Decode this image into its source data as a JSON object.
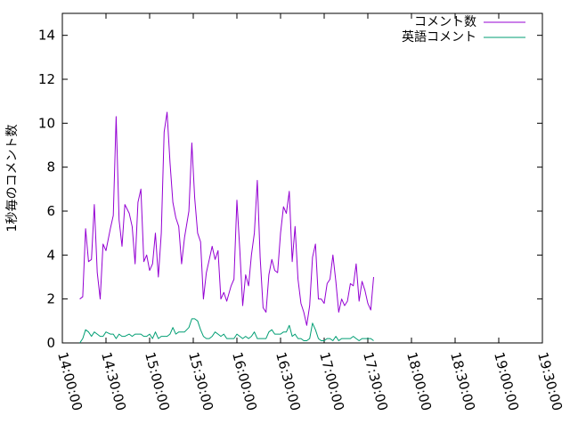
{
  "chart_data": {
    "type": "line",
    "title": "",
    "xlabel": "",
    "ylabel": "1秒毎のコメント数",
    "xlim": [
      "14:00:00",
      "19:30:00"
    ],
    "ylim": [
      0,
      15
    ],
    "grid": false,
    "legend_position": "top-right",
    "x_ticks": [
      "14:00:00",
      "14:30:00",
      "15:00:00",
      "15:30:00",
      "16:00:00",
      "16:30:00",
      "17:00:00",
      "17:30:00",
      "18:00:00",
      "18:30:00",
      "19:00:00",
      "19:30:00"
    ],
    "y_ticks": [
      0,
      2,
      4,
      6,
      8,
      10,
      12,
      14
    ],
    "series": [
      {
        "name": "コメント数",
        "color": "#9400d3",
        "points": [
          [
            "14:12:00",
            2.0
          ],
          [
            "14:14:00",
            2.1
          ],
          [
            "14:16:00",
            5.2
          ],
          [
            "14:18:00",
            3.7
          ],
          [
            "14:20:00",
            3.8
          ],
          [
            "14:22:00",
            6.3
          ],
          [
            "14:24:00",
            3.2
          ],
          [
            "14:26:00",
            2.0
          ],
          [
            "14:28:00",
            4.5
          ],
          [
            "14:30:00",
            4.2
          ],
          [
            "14:33:00",
            5.2
          ],
          [
            "14:35:00",
            5.8
          ],
          [
            "14:37:00",
            10.3
          ],
          [
            "14:39:00",
            5.6
          ],
          [
            "14:41:00",
            4.4
          ],
          [
            "14:43:00",
            6.3
          ],
          [
            "14:46:00",
            5.9
          ],
          [
            "14:48:00",
            5.3
          ],
          [
            "14:50:00",
            3.6
          ],
          [
            "14:52:00",
            6.4
          ],
          [
            "14:54:00",
            7.0
          ],
          [
            "14:56:00",
            3.7
          ],
          [
            "14:58:00",
            4.0
          ],
          [
            "15:00:00",
            3.3
          ],
          [
            "15:02:00",
            3.6
          ],
          [
            "15:04:00",
            5.0
          ],
          [
            "15:06:00",
            3.0
          ],
          [
            "15:08:00",
            5.0
          ],
          [
            "15:10:00",
            9.6
          ],
          [
            "15:12:00",
            10.5
          ],
          [
            "15:14:00",
            8.2
          ],
          [
            "15:16:00",
            6.4
          ],
          [
            "15:18:00",
            5.7
          ],
          [
            "15:20:00",
            5.3
          ],
          [
            "15:22:00",
            3.6
          ],
          [
            "15:24:00",
            4.8
          ],
          [
            "15:27:00",
            6.0
          ],
          [
            "15:29:00",
            9.1
          ],
          [
            "15:31:00",
            6.6
          ],
          [
            "15:33:00",
            5.0
          ],
          [
            "15:35:00",
            4.6
          ],
          [
            "15:37:00",
            2.0
          ],
          [
            "15:39:00",
            3.2
          ],
          [
            "15:41:00",
            3.8
          ],
          [
            "15:43:00",
            4.4
          ],
          [
            "15:45:00",
            3.8
          ],
          [
            "15:47:00",
            4.2
          ],
          [
            "15:49:00",
            2.0
          ],
          [
            "15:51:00",
            2.3
          ],
          [
            "15:53:00",
            1.9
          ],
          [
            "15:56:00",
            2.6
          ],
          [
            "15:58:00",
            2.9
          ],
          [
            "16:00:00",
            6.5
          ],
          [
            "16:02:00",
            4.2
          ],
          [
            "16:04:00",
            1.7
          ],
          [
            "16:06:00",
            3.1
          ],
          [
            "16:08:00",
            2.6
          ],
          [
            "16:10:00",
            4.0
          ],
          [
            "16:12:00",
            5.0
          ],
          [
            "16:14:00",
            7.4
          ],
          [
            "16:16:00",
            3.9
          ],
          [
            "16:18:00",
            1.6
          ],
          [
            "16:20:00",
            1.4
          ],
          [
            "16:22:00",
            3.1
          ],
          [
            "16:24:00",
            3.8
          ],
          [
            "16:26:00",
            3.3
          ],
          [
            "16:28:00",
            3.2
          ],
          [
            "16:30:00",
            5.0
          ],
          [
            "16:32:00",
            6.2
          ],
          [
            "16:34:00",
            5.9
          ],
          [
            "16:36:00",
            6.9
          ],
          [
            "16:38:00",
            3.7
          ],
          [
            "16:40:00",
            5.3
          ],
          [
            "16:42:00",
            2.9
          ],
          [
            "16:44:00",
            1.8
          ],
          [
            "16:46:00",
            1.4
          ],
          [
            "16:48:00",
            0.8
          ],
          [
            "16:50:00",
            1.7
          ],
          [
            "16:52:00",
            3.9
          ],
          [
            "16:54:00",
            4.5
          ],
          [
            "16:56:00",
            2.0
          ],
          [
            "16:58:00",
            2.0
          ],
          [
            "17:00:00",
            1.8
          ],
          [
            "17:02:00",
            2.7
          ],
          [
            "17:04:00",
            2.9
          ],
          [
            "17:06:00",
            4.0
          ],
          [
            "17:08:00",
            2.8
          ],
          [
            "17:10:00",
            1.4
          ],
          [
            "17:12:00",
            2.0
          ],
          [
            "17:14:00",
            1.7
          ],
          [
            "17:16:00",
            1.9
          ],
          [
            "17:18:00",
            2.7
          ],
          [
            "17:20:00",
            2.6
          ],
          [
            "17:22:00",
            3.6
          ],
          [
            "17:24:00",
            1.9
          ],
          [
            "17:26:00",
            2.8
          ],
          [
            "17:28:00",
            2.4
          ],
          [
            "17:30:00",
            1.8
          ],
          [
            "17:32:00",
            1.5
          ],
          [
            "17:34:00",
            3.0
          ]
        ]
      },
      {
        "name": "英語コメント",
        "color": "#009e73",
        "points": [
          [
            "14:12:00",
            0.0
          ],
          [
            "14:14:00",
            0.2
          ],
          [
            "14:16:00",
            0.6
          ],
          [
            "14:18:00",
            0.5
          ],
          [
            "14:20:00",
            0.3
          ],
          [
            "14:22:00",
            0.5
          ],
          [
            "14:24:00",
            0.4
          ],
          [
            "14:26:00",
            0.3
          ],
          [
            "14:28:00",
            0.3
          ],
          [
            "14:30:00",
            0.5
          ],
          [
            "14:33:00",
            0.4
          ],
          [
            "14:35:00",
            0.4
          ],
          [
            "14:37:00",
            0.2
          ],
          [
            "14:39:00",
            0.4
          ],
          [
            "14:41:00",
            0.3
          ],
          [
            "14:43:00",
            0.3
          ],
          [
            "14:46:00",
            0.4
          ],
          [
            "14:48:00",
            0.3
          ],
          [
            "14:50:00",
            0.4
          ],
          [
            "14:52:00",
            0.4
          ],
          [
            "14:54:00",
            0.4
          ],
          [
            "14:56:00",
            0.3
          ],
          [
            "14:58:00",
            0.3
          ],
          [
            "15:00:00",
            0.4
          ],
          [
            "15:02:00",
            0.2
          ],
          [
            "15:04:00",
            0.5
          ],
          [
            "15:06:00",
            0.2
          ],
          [
            "15:08:00",
            0.3
          ],
          [
            "15:10:00",
            0.3
          ],
          [
            "15:12:00",
            0.3
          ],
          [
            "15:14:00",
            0.4
          ],
          [
            "15:16:00",
            0.7
          ],
          [
            "15:18:00",
            0.4
          ],
          [
            "15:20:00",
            0.5
          ],
          [
            "15:22:00",
            0.5
          ],
          [
            "15:24:00",
            0.5
          ],
          [
            "15:27:00",
            0.7
          ],
          [
            "15:29:00",
            1.1
          ],
          [
            "15:31:00",
            1.1
          ],
          [
            "15:33:00",
            1.0
          ],
          [
            "15:35:00",
            0.6
          ],
          [
            "15:37:00",
            0.3
          ],
          [
            "15:39:00",
            0.2
          ],
          [
            "15:41:00",
            0.2
          ],
          [
            "15:43:00",
            0.3
          ],
          [
            "15:45:00",
            0.5
          ],
          [
            "15:47:00",
            0.4
          ],
          [
            "15:49:00",
            0.3
          ],
          [
            "15:51:00",
            0.4
          ],
          [
            "15:53:00",
            0.2
          ],
          [
            "15:56:00",
            0.2
          ],
          [
            "15:58:00",
            0.2
          ],
          [
            "16:00:00",
            0.4
          ],
          [
            "16:02:00",
            0.3
          ],
          [
            "16:04:00",
            0.2
          ],
          [
            "16:06:00",
            0.3
          ],
          [
            "16:08:00",
            0.2
          ],
          [
            "16:10:00",
            0.3
          ],
          [
            "16:12:00",
            0.5
          ],
          [
            "16:14:00",
            0.2
          ],
          [
            "16:16:00",
            0.2
          ],
          [
            "16:18:00",
            0.2
          ],
          [
            "16:20:00",
            0.2
          ],
          [
            "16:22:00",
            0.5
          ],
          [
            "16:24:00",
            0.6
          ],
          [
            "16:26:00",
            0.4
          ],
          [
            "16:28:00",
            0.4
          ],
          [
            "16:30:00",
            0.4
          ],
          [
            "16:32:00",
            0.5
          ],
          [
            "16:34:00",
            0.5
          ],
          [
            "16:36:00",
            0.8
          ],
          [
            "16:38:00",
            0.3
          ],
          [
            "16:40:00",
            0.4
          ],
          [
            "16:42:00",
            0.2
          ],
          [
            "16:44:00",
            0.2
          ],
          [
            "16:46:00",
            0.1
          ],
          [
            "16:48:00",
            0.1
          ],
          [
            "16:50:00",
            0.2
          ],
          [
            "16:52:00",
            0.9
          ],
          [
            "16:54:00",
            0.6
          ],
          [
            "16:56:00",
            0.2
          ],
          [
            "16:58:00",
            0.1
          ],
          [
            "17:00:00",
            0.1
          ],
          [
            "17:02:00",
            0.2
          ],
          [
            "17:04:00",
            0.2
          ],
          [
            "17:06:00",
            0.1
          ],
          [
            "17:08:00",
            0.3
          ],
          [
            "17:10:00",
            0.1
          ],
          [
            "17:12:00",
            0.2
          ],
          [
            "17:14:00",
            0.2
          ],
          [
            "17:16:00",
            0.2
          ],
          [
            "17:18:00",
            0.2
          ],
          [
            "17:20:00",
            0.3
          ],
          [
            "17:22:00",
            0.2
          ],
          [
            "17:24:00",
            0.1
          ],
          [
            "17:26:00",
            0.2
          ],
          [
            "17:28:00",
            0.2
          ],
          [
            "17:30:00",
            0.2
          ],
          [
            "17:32:00",
            0.2
          ],
          [
            "17:34:00",
            0.1
          ]
        ]
      }
    ]
  }
}
